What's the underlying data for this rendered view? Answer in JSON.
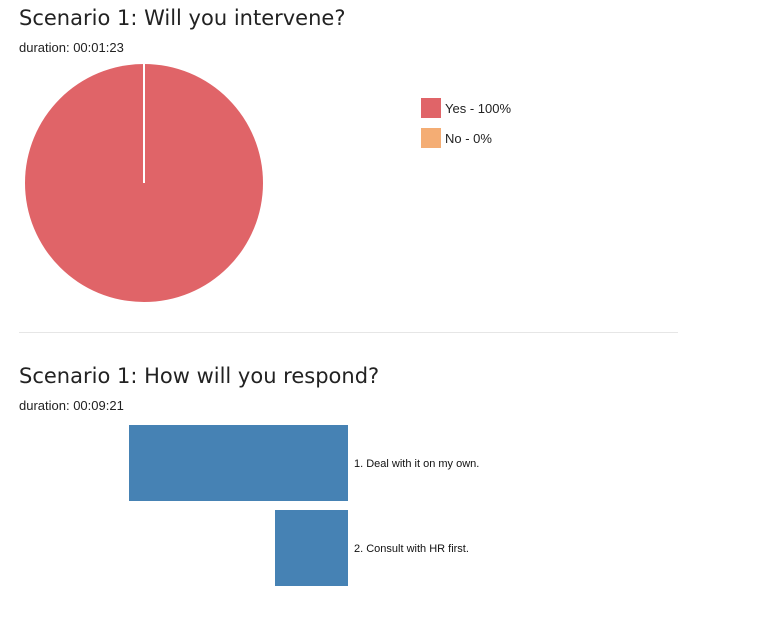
{
  "sections": [
    {
      "title": "Scenario 1: Will you intervene?",
      "duration": "duration: 00:01:23"
    },
    {
      "title": "Scenario 1: How will you respond?",
      "duration": "duration: 00:09:21"
    }
  ],
  "chart_data": [
    {
      "type": "pie",
      "title": "Scenario 1: Will you intervene?",
      "categories": [
        "Yes",
        "No"
      ],
      "values": [
        100,
        0
      ],
      "legend": [
        "Yes - 100%",
        "No - 0%"
      ],
      "colors": [
        "#e06468",
        "#f4ad74"
      ],
      "legend_position": "right"
    },
    {
      "type": "bar",
      "orientation": "horizontal",
      "direction": "right-to-left",
      "title": "Scenario 1: How will you respond?",
      "categories": [
        "1. Deal with it on my own.",
        "2. Consult with HR first."
      ],
      "values": [
        3,
        1
      ],
      "color": "#4682b4"
    }
  ]
}
